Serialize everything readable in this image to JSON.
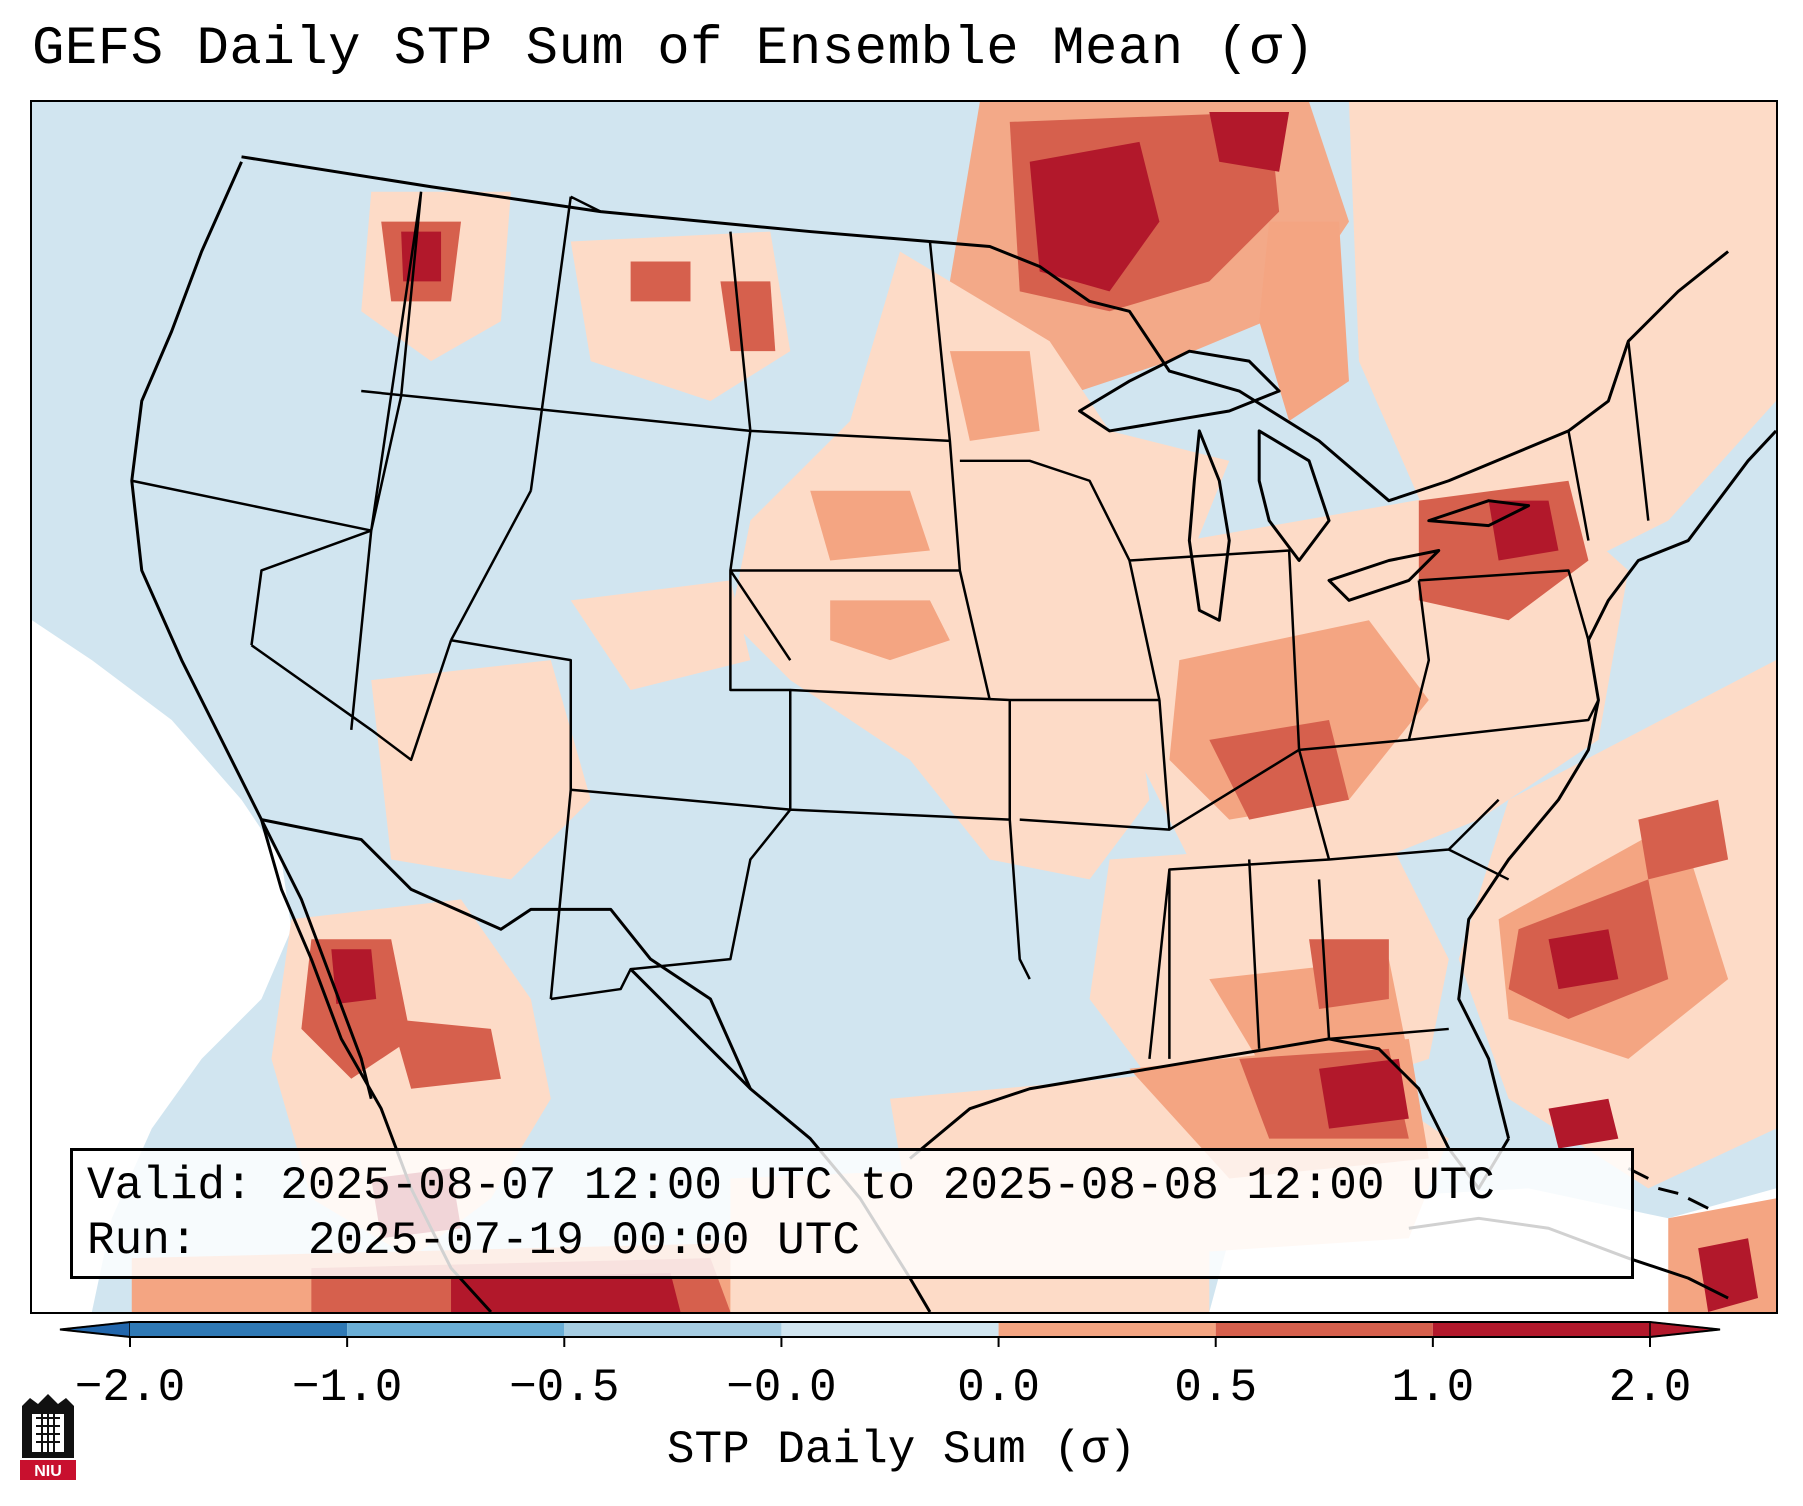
{
  "title": "GEFS Daily STP Sum of Ensemble Mean (σ)",
  "info": {
    "valid_label": "Valid:",
    "valid_value": "2025-08-07 12:00 UTC to 2025-08-08 12:00 UTC",
    "run_label": "Run:",
    "run_value": "2025-07-19 00:00 UTC"
  },
  "colorbar": {
    "label": "STP Daily Sum (σ)",
    "ticks": [
      "−2.0",
      "−1.0",
      "−0.5",
      "−0.0",
      "0.0",
      "0.5",
      "1.0",
      "2.0"
    ],
    "colors": [
      "#2f79b5",
      "#6aaed6",
      "#a6cde3",
      "#d1e5f0",
      "#fddbc7",
      "#f4a582",
      "#d6604d",
      "#b2182b"
    ],
    "under_color": "#2166ac",
    "over_color": "#b2182b"
  },
  "map": {
    "ocean_color": "#d1e5f0",
    "neutral_color": "#ffffff",
    "boundary_color": "#000000"
  },
  "logo": {
    "text": "NIU",
    "icon": "university-building-icon"
  }
}
